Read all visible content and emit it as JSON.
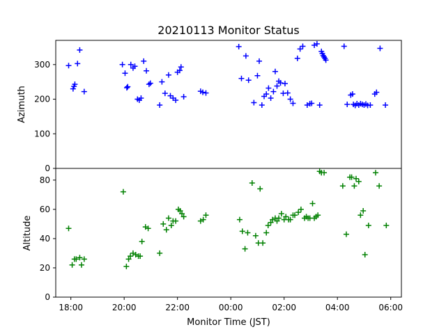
{
  "chart_data": {
    "type": "scatter",
    "title": "20210113 Monitor Status",
    "xlabel": "Monitor Time (JST)",
    "x_ticks": [
      "18:00",
      "20:00",
      "22:00",
      "00:00",
      "02:00",
      "04:00",
      "06:00"
    ],
    "xlim": [
      "17:26",
      "06:24"
    ],
    "panels": [
      {
        "name": "azimuth",
        "ylabel": "Azimuth",
        "ylim": [
          0,
          370
        ],
        "y_ticks": [
          "0",
          "100",
          "200",
          "300"
        ],
        "color": "#0000ff",
        "marker": "+",
        "points": [
          [
            "17:55",
            297
          ],
          [
            "18:05",
            230
          ],
          [
            "18:07",
            237
          ],
          [
            "18:09",
            243
          ],
          [
            "18:15",
            303
          ],
          [
            "18:20",
            342
          ],
          [
            "18:30",
            222
          ],
          [
            "19:56",
            300
          ],
          [
            "20:02",
            275
          ],
          [
            "20:06",
            233
          ],
          [
            "20:08",
            236
          ],
          [
            "20:15",
            300
          ],
          [
            "20:20",
            290
          ],
          [
            "20:24",
            295
          ],
          [
            "20:30",
            200
          ],
          [
            "20:34",
            197
          ],
          [
            "20:38",
            203
          ],
          [
            "20:44",
            310
          ],
          [
            "20:50",
            282
          ],
          [
            "20:56",
            243
          ],
          [
            "20:59",
            246
          ],
          [
            "21:20",
            183
          ],
          [
            "21:25",
            250
          ],
          [
            "21:32",
            217
          ],
          [
            "21:40",
            270
          ],
          [
            "21:44",
            210
          ],
          [
            "21:50",
            203
          ],
          [
            "21:56",
            197
          ],
          [
            "22:00",
            278
          ],
          [
            "22:05",
            283
          ],
          [
            "22:08",
            293
          ],
          [
            "22:14",
            207
          ],
          [
            "22:52",
            223
          ],
          [
            "22:57",
            220
          ],
          [
            "23:04",
            218
          ],
          [
            "00:18",
            352
          ],
          [
            "00:24",
            260
          ],
          [
            "00:34",
            325
          ],
          [
            "00:40",
            255
          ],
          [
            "00:52",
            190
          ],
          [
            "01:00",
            268
          ],
          [
            "01:04",
            310
          ],
          [
            "01:10",
            183
          ],
          [
            "01:15",
            208
          ],
          [
            "01:20",
            215
          ],
          [
            "01:25",
            232
          ],
          [
            "01:30",
            203
          ],
          [
            "01:36",
            222
          ],
          [
            "01:40",
            280
          ],
          [
            "01:44",
            238
          ],
          [
            "01:48",
            252
          ],
          [
            "01:52",
            247
          ],
          [
            "01:58",
            217
          ],
          [
            "02:02",
            245
          ],
          [
            "02:08",
            218
          ],
          [
            "02:14",
            200
          ],
          [
            "02:20",
            188
          ],
          [
            "02:30",
            318
          ],
          [
            "02:36",
            345
          ],
          [
            "02:42",
            353
          ],
          [
            "02:52",
            183
          ],
          [
            "02:58",
            187
          ],
          [
            "03:02",
            188
          ],
          [
            "03:08",
            356
          ],
          [
            "03:14",
            360
          ],
          [
            "03:20",
            183
          ],
          [
            "03:24",
            338
          ],
          [
            "03:26",
            332
          ],
          [
            "03:28",
            326
          ],
          [
            "03:30",
            322
          ],
          [
            "03:32",
            318
          ],
          [
            "03:34",
            313
          ],
          [
            "04:15",
            353
          ],
          [
            "04:22",
            185
          ],
          [
            "04:30",
            212
          ],
          [
            "04:34",
            215
          ],
          [
            "04:36",
            185
          ],
          [
            "04:40",
            182
          ],
          [
            "04:44",
            187
          ],
          [
            "04:48",
            183
          ],
          [
            "04:52",
            187
          ],
          [
            "04:56",
            185
          ],
          [
            "05:00",
            183
          ],
          [
            "05:04",
            186
          ],
          [
            "05:08",
            182
          ],
          [
            "05:14",
            183
          ],
          [
            "05:24",
            215
          ],
          [
            "05:28",
            220
          ],
          [
            "05:36",
            347
          ],
          [
            "05:48",
            183
          ]
        ]
      },
      {
        "name": "altitude",
        "ylabel": "Altitude",
        "ylim": [
          0,
          88
        ],
        "y_ticks": [
          "0",
          "20",
          "40",
          "60",
          "80"
        ],
        "color": "#008000",
        "marker": "+",
        "points": [
          [
            "17:55",
            47
          ],
          [
            "18:03",
            22
          ],
          [
            "18:08",
            26
          ],
          [
            "18:12",
            26
          ],
          [
            "18:20",
            27
          ],
          [
            "18:24",
            22
          ],
          [
            "18:30",
            26
          ],
          [
            "19:58",
            72
          ],
          [
            "20:05",
            21
          ],
          [
            "20:10",
            26
          ],
          [
            "20:14",
            28
          ],
          [
            "20:20",
            30
          ],
          [
            "20:26",
            29
          ],
          [
            "20:32",
            28
          ],
          [
            "20:36",
            28
          ],
          [
            "20:40",
            38
          ],
          [
            "20:48",
            48
          ],
          [
            "20:54",
            47
          ],
          [
            "21:20",
            30
          ],
          [
            "21:28",
            50
          ],
          [
            "21:35",
            46
          ],
          [
            "21:40",
            54
          ],
          [
            "21:46",
            49
          ],
          [
            "21:50",
            52
          ],
          [
            "21:56",
            52
          ],
          [
            "22:02",
            60
          ],
          [
            "22:06",
            59
          ],
          [
            "22:10",
            57
          ],
          [
            "22:14",
            55
          ],
          [
            "22:52",
            52
          ],
          [
            "22:58",
            53
          ],
          [
            "23:04",
            56
          ],
          [
            "00:20",
            53
          ],
          [
            "00:26",
            45
          ],
          [
            "00:32",
            33
          ],
          [
            "00:38",
            44
          ],
          [
            "00:48",
            78
          ],
          [
            "00:56",
            42
          ],
          [
            "01:02",
            37
          ],
          [
            "01:06",
            74
          ],
          [
            "01:12",
            37
          ],
          [
            "01:20",
            44
          ],
          [
            "01:24",
            49
          ],
          [
            "01:30",
            51
          ],
          [
            "01:34",
            53
          ],
          [
            "01:40",
            54
          ],
          [
            "01:44",
            52
          ],
          [
            "01:48",
            54
          ],
          [
            "01:54",
            57
          ],
          [
            "02:00",
            53
          ],
          [
            "02:04",
            55
          ],
          [
            "02:10",
            53
          ],
          [
            "02:14",
            53
          ],
          [
            "02:20",
            56
          ],
          [
            "02:24",
            56
          ],
          [
            "02:32",
            58
          ],
          [
            "02:38",
            60
          ],
          [
            "02:46",
            54
          ],
          [
            "02:50",
            55
          ],
          [
            "02:54",
            54
          ],
          [
            "02:58",
            54
          ],
          [
            "03:04",
            64
          ],
          [
            "03:08",
            54
          ],
          [
            "03:12",
            55
          ],
          [
            "03:16",
            56
          ],
          [
            "03:20",
            86
          ],
          [
            "03:24",
            85
          ],
          [
            "03:30",
            85
          ],
          [
            "04:12",
            76
          ],
          [
            "04:20",
            43
          ],
          [
            "04:28",
            82
          ],
          [
            "04:32",
            82
          ],
          [
            "04:38",
            76
          ],
          [
            "04:42",
            81
          ],
          [
            "04:48",
            79
          ],
          [
            "04:52",
            56
          ],
          [
            "04:58",
            59
          ],
          [
            "05:02",
            29
          ],
          [
            "05:10",
            49
          ],
          [
            "05:26",
            85
          ],
          [
            "05:34",
            76
          ],
          [
            "05:50",
            49
          ]
        ]
      }
    ]
  }
}
